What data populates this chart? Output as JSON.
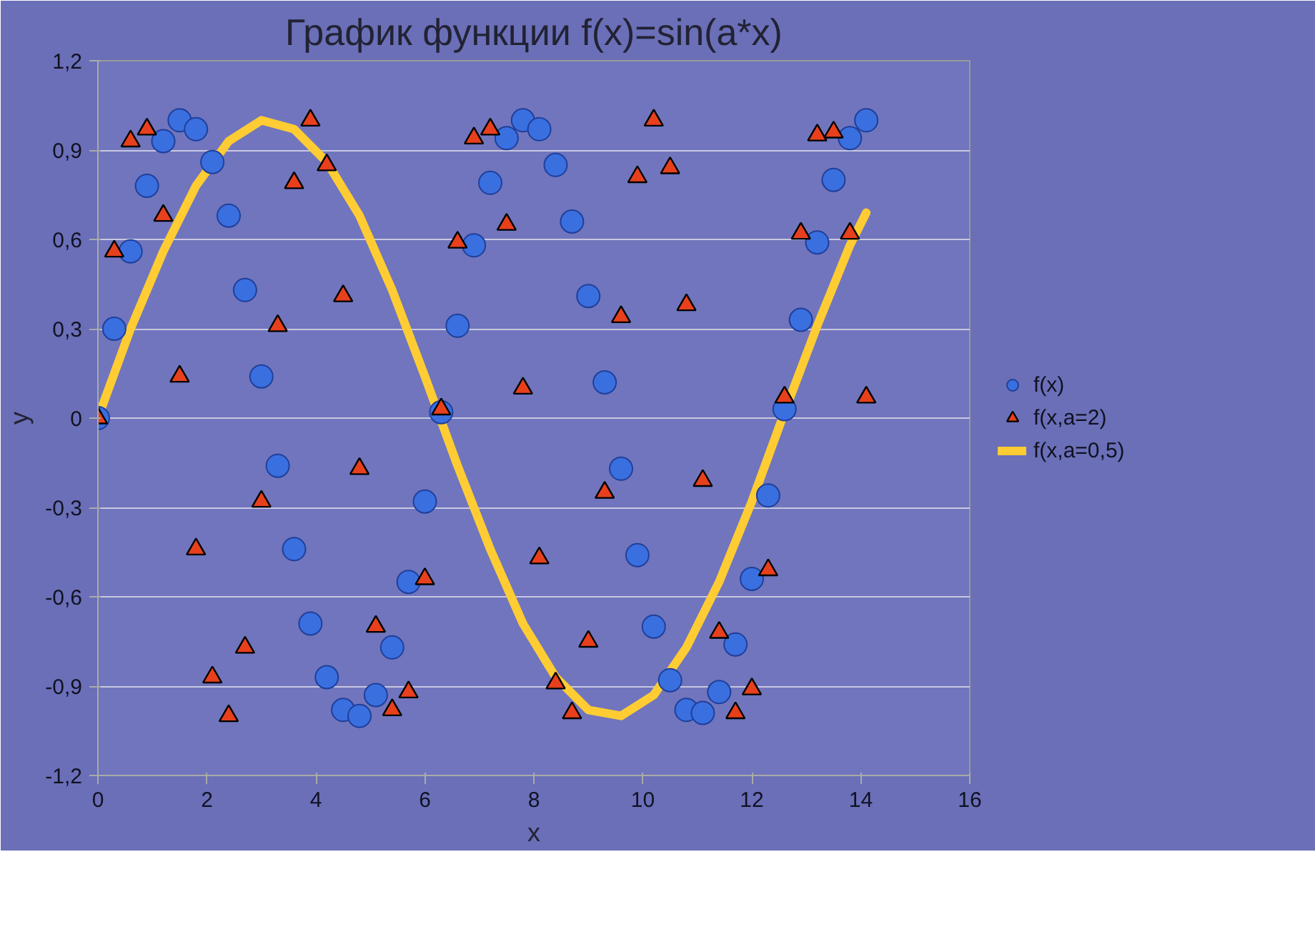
{
  "chart_data": {
    "type": "scatter",
    "title": "График функции f(x)=sin(a*x)",
    "xlabel": "x",
    "ylabel": "y",
    "x": [
      0,
      0.3,
      0.6,
      0.9,
      1.2,
      1.5,
      1.8,
      2.1,
      2.4,
      2.7,
      3.0,
      3.3,
      3.6,
      3.9,
      4.2,
      4.5,
      4.8,
      5.1,
      5.4,
      5.7,
      6.0,
      6.3,
      6.6,
      6.9,
      7.2,
      7.5,
      7.8,
      8.1,
      8.4,
      8.7,
      9.0,
      9.3,
      9.6,
      9.9,
      10.2,
      10.5,
      10.8,
      11.1,
      11.4,
      11.7,
      12.0,
      12.3,
      12.6,
      12.9,
      13.2,
      13.5,
      13.8,
      14.1
    ],
    "series": [
      {
        "name": "f(x)",
        "color": "#3a6fe0",
        "marker": "circle",
        "values": [
          0,
          0.3,
          0.56,
          0.78,
          0.93,
          1.0,
          0.97,
          0.86,
          0.68,
          0.43,
          0.14,
          -0.16,
          -0.44,
          -0.69,
          -0.87,
          -0.98,
          -1.0,
          -0.93,
          -0.77,
          -0.55,
          -0.28,
          0.02,
          0.31,
          0.58,
          0.79,
          0.94,
          1.0,
          0.97,
          0.85,
          0.66,
          0.41,
          0.12,
          -0.17,
          -0.46,
          -0.7,
          -0.88,
          -0.98,
          -0.99,
          -0.92,
          -0.76,
          -0.54,
          -0.26,
          0.03,
          0.33,
          0.59,
          0.8,
          0.94,
          1.0
        ]
      },
      {
        "name": "f(x,a=2)",
        "color": "#e8401c",
        "marker": "triangle",
        "values": [
          0,
          0.56,
          0.93,
          0.97,
          0.68,
          0.14,
          -0.44,
          -0.87,
          -1.0,
          -0.77,
          -0.28,
          0.31,
          0.79,
          1.0,
          0.85,
          0.41,
          -0.17,
          -0.7,
          -0.98,
          -0.92,
          -0.54,
          0.03,
          0.59,
          0.94,
          0.97,
          0.65,
          0.1,
          -0.47,
          -0.89,
          -0.99,
          -0.75,
          -0.25,
          0.34,
          0.81,
          1.0,
          0.84,
          0.38,
          -0.21,
          -0.72,
          -0.99,
          -0.91,
          -0.51,
          0.07,
          0.62,
          0.95,
          0.96,
          0.62,
          0.07
        ]
      },
      {
        "name": "f(x,a=0,5)",
        "type": "line",
        "color": "#ffcc33",
        "marker": "none",
        "x": [
          0,
          0.6,
          1.2,
          1.8,
          2.4,
          3.0,
          3.6,
          4.2,
          4.8,
          5.4,
          6.0,
          6.6,
          7.2,
          7.8,
          8.4,
          9.0,
          9.6,
          10.2,
          10.8,
          11.4,
          12.0,
          12.6,
          13.2,
          13.8,
          14.1
        ],
        "values": [
          0,
          0.3,
          0.56,
          0.78,
          0.93,
          1.0,
          0.97,
          0.86,
          0.68,
          0.43,
          0.14,
          -0.16,
          -0.44,
          -0.69,
          -0.87,
          -0.98,
          -1.0,
          -0.93,
          -0.77,
          -0.55,
          -0.28,
          0.02,
          0.31,
          0.58,
          0.69
        ]
      }
    ],
    "xlim": [
      0,
      16
    ],
    "xticks": [
      0,
      2,
      4,
      6,
      8,
      10,
      12,
      14,
      16
    ],
    "ylim": [
      -1.2,
      1.2
    ],
    "yticks": [
      {
        "value": -1.2,
        "label": "-1,2"
      },
      {
        "value": -0.9,
        "label": "-0,9"
      },
      {
        "value": -0.6,
        "label": "-0,6"
      },
      {
        "value": -0.3,
        "label": "-0,3"
      },
      0,
      {
        "value": 0.3,
        "label": "0,3"
      },
      {
        "value": 0.6,
        "label": "0,6"
      },
      {
        "value": 0.9,
        "label": "0,9"
      },
      {
        "value": 1.2,
        "label": "1,2"
      }
    ],
    "grid": "y",
    "legend": "right"
  }
}
